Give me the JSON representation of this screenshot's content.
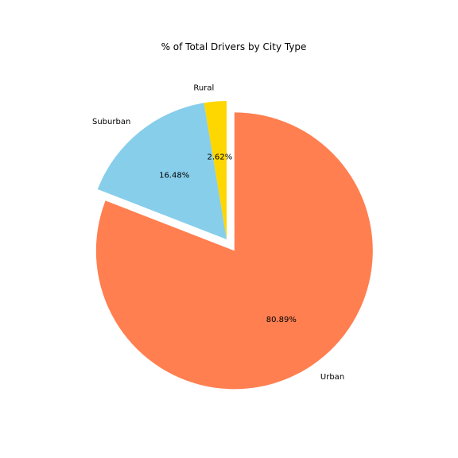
{
  "chart_data": {
    "type": "pie",
    "title": "% of Total Drivers by City Type",
    "slices": [
      {
        "label": "Rural",
        "value": 2.62,
        "pct_label": "2.62%",
        "color": "#FFD700",
        "exploded": false
      },
      {
        "label": "Suburban",
        "value": 16.48,
        "pct_label": "16.48%",
        "color": "#87CEEB",
        "exploded": false
      },
      {
        "label": "Urban",
        "value": 80.89,
        "pct_label": "80.89%",
        "color": "#FF7F50",
        "exploded": true
      }
    ],
    "start_angle_deg": 90,
    "direction": "counterclockwise"
  }
}
